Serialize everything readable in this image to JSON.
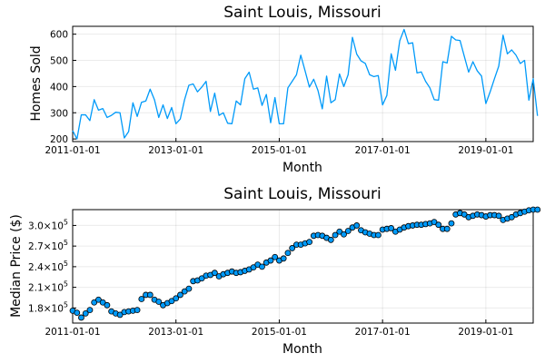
{
  "chart_data": [
    {
      "type": "line",
      "title": "Saint Louis, Missouri",
      "xlabel": "Month",
      "ylabel": "Homes Sold",
      "xlim": [
        "2011-01-01",
        "2019-12-01"
      ],
      "ylim": [
        190,
        630
      ],
      "grid": true,
      "legend": "none",
      "color": "#009AF9",
      "x_ticks": [
        "2011-01-01",
        "2013-01-01",
        "2015-01-01",
        "2017-01-01",
        "2019-01-01"
      ],
      "y_ticks": [
        200,
        300,
        400,
        500,
        600
      ],
      "x_start": "2011-01-01",
      "x_step": "month",
      "values": [
        232,
        200,
        292,
        292,
        270,
        350,
        310,
        316,
        282,
        290,
        302,
        300,
        204,
        228,
        338,
        286,
        340,
        345,
        390,
        350,
        282,
        330,
        278,
        320,
        258,
        276,
        350,
        405,
        410,
        380,
        398,
        420,
        305,
        375,
        290,
        300,
        260,
        258,
        345,
        330,
        430,
        455,
        390,
        395,
        328,
        370,
        262,
        358,
        258,
        258,
        395,
        420,
        445,
        520,
        460,
        398,
        428,
        385,
        315,
        440,
        338,
        350,
        448,
        400,
        445,
        588,
        524,
        498,
        488,
        445,
        438,
        442,
        330,
        366,
        525,
        462,
        575,
        618,
        564,
        567,
        452,
        456,
        420,
        395,
        350,
        348,
        495,
        490,
        592,
        578,
        576,
        515,
        455,
        495,
        460,
        440,
        335,
        380,
        430,
        478,
        596,
        525,
        540,
        520,
        488,
        500,
        348,
        430,
        288
      ]
    },
    {
      "type": "scatter",
      "title": "Saint Louis, Missouri",
      "xlabel": "Month",
      "ylabel": "Median Price ($)",
      "xlim": [
        "2011-01-01",
        "2019-12-01"
      ],
      "ylim": [
        158000,
        323000
      ],
      "grid": true,
      "legend": "none",
      "color": "#009AF9",
      "x_ticks": [
        "2011-01-01",
        "2013-01-01",
        "2015-01-01",
        "2017-01-01",
        "2019-01-01"
      ],
      "y_ticks": [
        180000,
        210000,
        240000,
        270000,
        300000
      ],
      "y_tick_labels": [
        {
          "mant": "1.8×10",
          "exp": "5"
        },
        {
          "mant": "2.1×10",
          "exp": "5"
        },
        {
          "mant": "2.4×10",
          "exp": "5"
        },
        {
          "mant": "2.7×10",
          "exp": "5"
        },
        {
          "mant": "3.0×10",
          "exp": "5"
        }
      ],
      "x_start": "2011-01-01",
      "x_step": "month",
      "values": [
        176000,
        173000,
        166000,
        172000,
        177000,
        188000,
        192000,
        188000,
        184000,
        175000,
        172000,
        170000,
        174000,
        175000,
        176000,
        177000,
        193000,
        199000,
        199000,
        192000,
        189000,
        184000,
        187000,
        190000,
        194000,
        199000,
        204000,
        208000,
        219000,
        220000,
        223000,
        227000,
        228000,
        231000,
        226000,
        229000,
        231000,
        233000,
        231000,
        232000,
        234000,
        236000,
        239000,
        243000,
        240000,
        246000,
        249000,
        254000,
        249000,
        252000,
        260000,
        267000,
        272000,
        272000,
        274000,
        276000,
        285000,
        286000,
        285000,
        282000,
        279000,
        286000,
        291000,
        287000,
        292000,
        297000,
        300000,
        293000,
        290000,
        288000,
        286000,
        286000,
        294000,
        295000,
        296000,
        291000,
        294000,
        297000,
        299000,
        300000,
        301000,
        301000,
        302000,
        303000,
        305000,
        301000,
        295000,
        295000,
        303000,
        316000,
        318000,
        316000,
        312000,
        314000,
        316000,
        315000,
        313000,
        315000,
        315000,
        314000,
        308000,
        310000,
        312000,
        316000,
        318000,
        320000,
        322000,
        323000,
        323000
      ]
    }
  ]
}
